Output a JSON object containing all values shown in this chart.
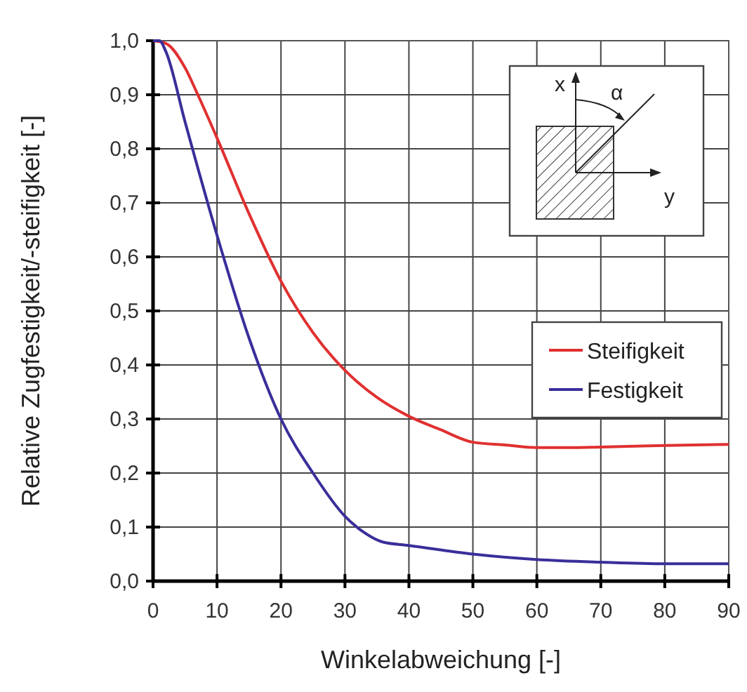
{
  "chart_data": {
    "type": "line",
    "xlabel": "Winkelabweichung [-]",
    "ylabel": "Relative Zugfestigkeit/-steifigkeit [-]",
    "xlim": [
      0,
      90
    ],
    "xticks": [
      0,
      10,
      20,
      30,
      40,
      50,
      60,
      70,
      80,
      90
    ],
    "ylim": [
      0,
      1
    ],
    "yticks": [
      {
        "value": 0,
        "label": "0,0"
      },
      {
        "value": 0.1,
        "label": "0,1"
      },
      {
        "value": 0.2,
        "label": "0,2"
      },
      {
        "value": 0.3,
        "label": "0,3"
      },
      {
        "value": 0.4,
        "label": "0,4"
      },
      {
        "value": 0.5,
        "label": "0,5"
      },
      {
        "value": 0.6,
        "label": "0,6"
      },
      {
        "value": 0.7,
        "label": "0,7"
      },
      {
        "value": 0.8,
        "label": "0,8"
      },
      {
        "value": 0.9,
        "label": "0,9"
      },
      {
        "value": 1,
        "label": "1,0"
      }
    ],
    "grid": true,
    "legend": "right",
    "line_style": "solid",
    "annotations": [
      "x",
      "y",
      "α"
    ],
    "series": [
      {
        "name": "Steifigkeit",
        "color": "#e03030",
        "x": [
          0,
          2,
          5,
          7,
          10,
          15,
          20,
          25,
          30,
          35,
          40,
          45,
          50,
          55,
          60,
          65,
          70,
          80,
          90
        ],
        "values": [
          1.0,
          0.995,
          0.95,
          0.9,
          0.82,
          0.68,
          0.555,
          0.46,
          0.39,
          0.34,
          0.305,
          0.28,
          0.257,
          0.252,
          0.247,
          0.247,
          0.248,
          0.251,
          0.253
        ]
      },
      {
        "name": "Festigkeit",
        "color": "#3a2e9a",
        "x": [
          0,
          1,
          2,
          5,
          10,
          15,
          20,
          25,
          30,
          33,
          36,
          40,
          50,
          60,
          70,
          80,
          90
        ],
        "values": [
          1.0,
          1.0,
          0.98,
          0.85,
          0.64,
          0.45,
          0.3,
          0.2,
          0.12,
          0.09,
          0.072,
          0.066,
          0.05,
          0.04,
          0.035,
          0.032,
          0.032
        ]
      }
    ]
  }
}
